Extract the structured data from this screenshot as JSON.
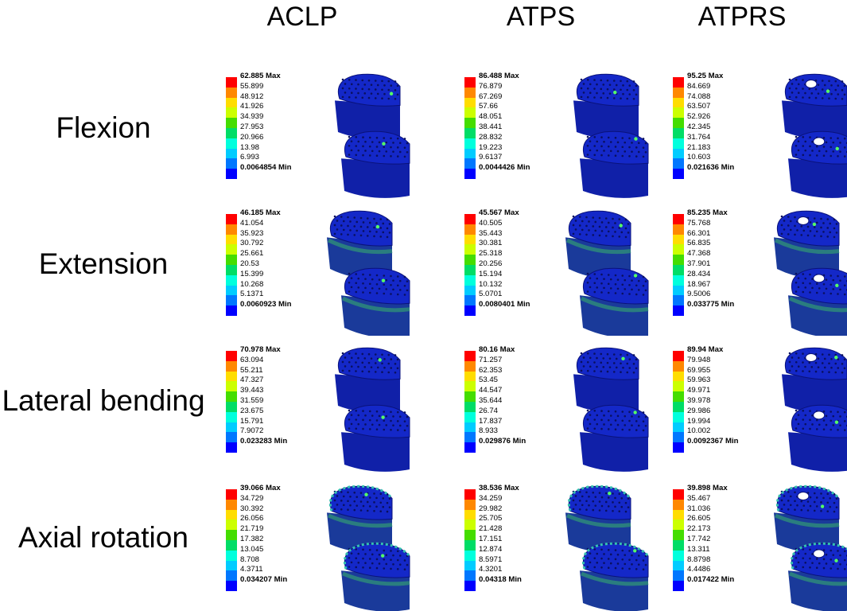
{
  "column_headers": [
    "ACLP",
    "ATPS",
    "ATPRS"
  ],
  "row_labels": [
    "Flexion",
    "Extension",
    "Lateral bending",
    "Axial rotation"
  ],
  "legend_colors": [
    "#ff0000",
    "#ff8800",
    "#ffdd00",
    "#ccff00",
    "#44dd00",
    "#00dd66",
    "#00ffdd",
    "#00ccff",
    "#0077ff",
    "#0000ff"
  ],
  "max_suffix": "Max",
  "min_suffix": "Min",
  "panels": [
    {
      "row": "Flexion",
      "column": "ACLP",
      "max": "62.885",
      "min": "0.0064854",
      "levels": [
        "55.899",
        "48.912",
        "41.926",
        "34.939",
        "27.953",
        "20.966",
        "13.98",
        "6.993"
      ]
    },
    {
      "row": "Flexion",
      "column": "ATPS",
      "max": "86.488",
      "min": "0.0044426",
      "levels": [
        "76.879",
        "67.269",
        "57.66",
        "48.051",
        "38.441",
        "28.832",
        "19.223",
        "9.6137"
      ]
    },
    {
      "row": "Flexion",
      "column": "ATPRS",
      "max": "95.25",
      "min": "0.021636",
      "levels": [
        "84.669",
        "74.088",
        "63.507",
        "52.926",
        "42.345",
        "31.764",
        "21.183",
        "10.603"
      ]
    },
    {
      "row": "Extension",
      "column": "ACLP",
      "max": "46.185",
      "min": "0.0060923",
      "levels": [
        "41.054",
        "35.923",
        "30.792",
        "25.661",
        "20.53",
        "15.399",
        "10.268",
        "5.1371"
      ]
    },
    {
      "row": "Extension",
      "column": "ATPS",
      "max": "45.567",
      "min": "0.0080401",
      "levels": [
        "40.505",
        "35.443",
        "30.381",
        "25.318",
        "20.256",
        "15.194",
        "10.132",
        "5.0701"
      ]
    },
    {
      "row": "Extension",
      "column": "ATPRS",
      "max": "85.235",
      "min": "0.033775",
      "levels": [
        "75.768",
        "66.301",
        "56.835",
        "47.368",
        "37.901",
        "28.434",
        "18.967",
        "9.5006"
      ]
    },
    {
      "row": "Lateral bending",
      "column": "ACLP",
      "max": "70.978",
      "min": "0.023283",
      "levels": [
        "63.094",
        "55.211",
        "47.327",
        "39.443",
        "31.559",
        "23.675",
        "15.791",
        "7.9072"
      ]
    },
    {
      "row": "Lateral bending",
      "column": "ATPS",
      "max": "80.16",
      "min": "0.029876",
      "levels": [
        "71.257",
        "62.353",
        "53.45",
        "44.547",
        "35.644",
        "26.74",
        "17.837",
        "8.933"
      ]
    },
    {
      "row": "Lateral bending",
      "column": "ATPRS",
      "max": "89.94",
      "min": "0.0092367",
      "levels": [
        "79.948",
        "69.955",
        "59.963",
        "49.971",
        "39.978",
        "29.986",
        "19.994",
        "10.002"
      ]
    },
    {
      "row": "Axial rotation",
      "column": "ACLP",
      "max": "39.066",
      "min": "0.034207",
      "levels": [
        "34.729",
        "30.392",
        "26.056",
        "21.719",
        "17.382",
        "13.045",
        "8.708",
        "4.3711"
      ]
    },
    {
      "row": "Axial rotation",
      "column": "ATPS",
      "max": "38.536",
      "min": "0.04318",
      "levels": [
        "34.259",
        "29.982",
        "25.705",
        "21.428",
        "17.151",
        "12.874",
        "8.5971",
        "4.3201"
      ]
    },
    {
      "row": "Axial rotation",
      "column": "ATPRS",
      "max": "39.898",
      "min": "0.017422",
      "levels": [
        "35.467",
        "31.036",
        "26.605",
        "22.173",
        "17.742",
        "13.311",
        "8.8798",
        "4.4486"
      ]
    }
  ]
}
